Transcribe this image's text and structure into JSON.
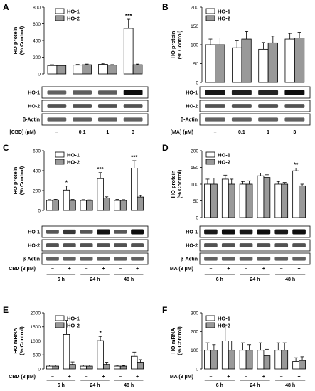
{
  "colors": {
    "ho1": "#ffffff",
    "ho2": "#999999",
    "stroke": "#000000"
  },
  "chart_data": [
    {
      "panel": "A",
      "type": "bar",
      "ylabel": [
        "HO protein",
        "(% Control)"
      ],
      "ylim": [
        0,
        800
      ],
      "yticks": [
        0,
        200,
        400,
        600,
        800
      ],
      "legend": [
        "HO-1",
        "HO-2"
      ],
      "categories": [
        "–",
        "0.1",
        "1",
        "3"
      ],
      "condition_label": "[CBD] (μM)",
      "series": [
        {
          "name": "HO-1",
          "values": [
            100,
            105,
            115,
            545
          ],
          "errors": [
            10,
            8,
            12,
            110
          ],
          "sig": [
            "",
            "",
            "",
            "***"
          ]
        },
        {
          "name": "HO-2",
          "values": [
            100,
            110,
            105,
            110
          ],
          "errors": [
            6,
            8,
            6,
            8
          ],
          "sig": [
            "",
            "",
            "",
            ""
          ]
        }
      ],
      "blots": [
        "HO-1",
        "HO-2",
        "β-Actin"
      ]
    },
    {
      "panel": "B",
      "type": "bar",
      "ylabel": [
        "HO protein",
        "(% Control)"
      ],
      "ylim": [
        0,
        200
      ],
      "yticks": [
        0,
        50,
        100,
        150,
        200
      ],
      "legend": [
        "HO-1",
        "HO-2"
      ],
      "categories": [
        "–",
        "0.1",
        "1",
        "3"
      ],
      "condition_label": "[MA] (μM)",
      "series": [
        {
          "name": "HO-1",
          "values": [
            100,
            92,
            88,
            115
          ],
          "errors": [
            15,
            20,
            18,
            15
          ],
          "sig": [
            "",
            "",
            "",
            ""
          ]
        },
        {
          "name": "HO-2",
          "values": [
            100,
            115,
            105,
            118
          ],
          "errors": [
            18,
            20,
            18,
            15
          ],
          "sig": [
            "",
            "",
            "",
            ""
          ]
        }
      ],
      "blots": [
        "HO-1",
        "HO-2",
        "β-Actin"
      ]
    },
    {
      "panel": "C",
      "type": "bar",
      "ylabel": [
        "HO protein",
        "(% Control)"
      ],
      "ylim": [
        0,
        600
      ],
      "yticks": [
        0,
        200,
        400,
        600
      ],
      "legend": [
        "HO-1",
        "HO-2"
      ],
      "categories": [
        "–",
        "+",
        "–",
        "+",
        "–",
        "+"
      ],
      "groups": [
        "6 h",
        "24 h",
        "48 h"
      ],
      "condition_label": "CBD (3 μM)",
      "series": [
        {
          "name": "HO-1",
          "values": [
            100,
            205,
            100,
            320,
            100,
            425
          ],
          "errors": [
            8,
            40,
            8,
            60,
            10,
            75
          ],
          "sig": [
            "",
            "*",
            "",
            "***",
            "",
            "***"
          ]
        },
        {
          "name": "HO-2",
          "values": [
            105,
            100,
            100,
            125,
            100,
            135
          ],
          "errors": [
            6,
            10,
            6,
            12,
            8,
            15
          ],
          "sig": [
            "",
            "",
            "",
            "",
            "",
            ""
          ]
        }
      ],
      "blots": [
        "HO-1",
        "HO-2",
        "β-Actin"
      ]
    },
    {
      "panel": "D",
      "type": "bar",
      "ylabel": [
        "HO protein",
        "(% Control)"
      ],
      "ylim": [
        0,
        200
      ],
      "yticks": [
        0,
        50,
        100,
        150,
        200
      ],
      "legend": [
        "HO-1",
        "HO-2"
      ],
      "categories": [
        "–",
        "+",
        "–",
        "+",
        "–",
        "+"
      ],
      "groups": [
        "6 h",
        "24 h",
        "48 h"
      ],
      "condition_label": "MA (3 μM)",
      "series": [
        {
          "name": "HO-1",
          "values": [
            100,
            115,
            100,
            125,
            100,
            140
          ],
          "errors": [
            15,
            12,
            8,
            8,
            8,
            8
          ],
          "sig": [
            "",
            "",
            "",
            "",
            "",
            "**"
          ]
        },
        {
          "name": "HO-2",
          "values": [
            100,
            100,
            100,
            120,
            100,
            95
          ],
          "errors": [
            18,
            15,
            10,
            8,
            5,
            5
          ],
          "sig": [
            "",
            "",
            "",
            "",
            "",
            ""
          ]
        }
      ],
      "blots": [
        "HO-1",
        "HO-2",
        "β-Actin"
      ]
    },
    {
      "panel": "E",
      "type": "bar",
      "ylabel": [
        "HO mRNA",
        "(% Control)"
      ],
      "ylim": [
        0,
        2000
      ],
      "yticks": [
        0,
        500,
        1000,
        1500,
        2000
      ],
      "legend": [
        "HO-1",
        "HO-2"
      ],
      "categories": [
        "–",
        "+",
        "–",
        "+",
        "–",
        "+"
      ],
      "groups": [
        "6 h",
        "24 h",
        "48 h"
      ],
      "condition_label": "CBD (3 μM)",
      "series": [
        {
          "name": "HO-1",
          "values": [
            100,
            1230,
            100,
            1010,
            100,
            450
          ],
          "errors": [
            40,
            500,
            40,
            150,
            30,
            150
          ],
          "sig": [
            "",
            "",
            "",
            "*",
            "",
            ""
          ]
        },
        {
          "name": "HO-2",
          "values": [
            100,
            160,
            100,
            160,
            100,
            240
          ],
          "errors": [
            40,
            90,
            40,
            80,
            20,
            90
          ],
          "sig": [
            "",
            "",
            "",
            "",
            "",
            ""
          ]
        }
      ]
    },
    {
      "panel": "F",
      "type": "bar",
      "ylabel": [
        "HO mRNA",
        "(% Control)"
      ],
      "ylim": [
        0,
        300
      ],
      "yticks": [
        0,
        100,
        200,
        300
      ],
      "legend": [
        "HO-1",
        "HO-2"
      ],
      "categories": [
        "–",
        "+",
        "–",
        "+",
        "–",
        "+"
      ],
      "groups": [
        "6 h",
        "24 h",
        "48 h"
      ],
      "condition_label": "MA (3 μM)",
      "series": [
        {
          "name": "HO-1",
          "values": [
            100,
            150,
            100,
            100,
            100,
            40
          ],
          "errors": [
            40,
            85,
            40,
            40,
            40,
            20
          ],
          "sig": [
            "",
            "",
            "",
            "",
            "",
            ""
          ]
        },
        {
          "name": "HO-2",
          "values": [
            100,
            100,
            100,
            70,
            100,
            45
          ],
          "errors": [
            30,
            50,
            30,
            35,
            40,
            20
          ],
          "sig": [
            "",
            "",
            "",
            "",
            "",
            ""
          ]
        }
      ]
    }
  ]
}
